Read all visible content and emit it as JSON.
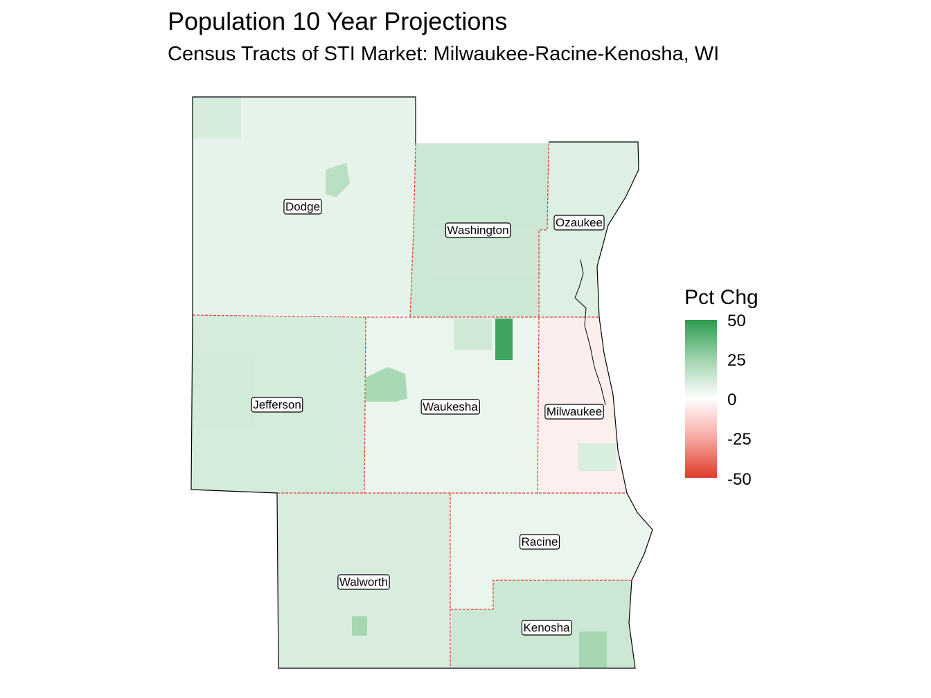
{
  "title": "Population 10 Year Projections",
  "subtitle": "Census Tracts of STI Market: Milwaukee-Racine-Kenosha, WI",
  "legend": {
    "title": "Pct Chg",
    "ticks": [
      "50",
      "25",
      "0",
      "-25",
      "-50"
    ],
    "scale": {
      "max": 50,
      "mid": 0,
      "min": -50
    },
    "colors": {
      "high": "#2e9a4f",
      "mid": "#ffffff",
      "low": "#e03b2c"
    }
  },
  "counties": [
    {
      "name": "Dodge",
      "pct_chg": 6
    },
    {
      "name": "Washington",
      "pct_chg": 12
    },
    {
      "name": "Ozaukee",
      "pct_chg": 8
    },
    {
      "name": "Jefferson",
      "pct_chg": 10
    },
    {
      "name": "Waukesha",
      "pct_chg": 5
    },
    {
      "name": "Milwaukee",
      "pct_chg": -4
    },
    {
      "name": "Walworth",
      "pct_chg": 9
    },
    {
      "name": "Racine",
      "pct_chg": 5
    },
    {
      "name": "Kenosha",
      "pct_chg": 12
    }
  ],
  "boundary_colors": {
    "county": "#e03b2c",
    "outline": "#000000"
  }
}
